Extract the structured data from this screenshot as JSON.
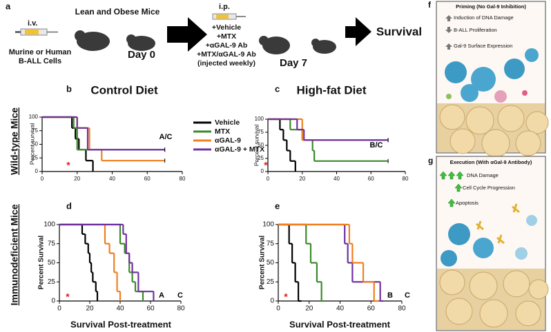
{
  "schematic": {
    "label": "a",
    "iv": "i.v.",
    "cells": [
      "Murine or Human",
      "B-ALL Cells"
    ],
    "mice_title": "Lean and Obese Mice",
    "day0": "Day 0",
    "ip": "i.p.",
    "treatments": [
      "+Vehicle",
      "+MTX",
      "+αGAL-9 Ab",
      "+MTX/αGAL-9 Ab",
      "(injected weekly)"
    ],
    "day7": "Day 7",
    "outcome": "Survival"
  },
  "row_labels": [
    "Wild-type Mice",
    "Immunodeficient Mice"
  ],
  "panels": [
    {
      "label": "f",
      "title": "Priming (No Gal-9 Inhibition)",
      "items": [
        "Induction of DNA Damage",
        "B-ALL Proliferation",
        "Gal-9 Surface Expression"
      ]
    },
    {
      "label": "g",
      "title": "Execution (With αGal-9 Antibody)",
      "items": [
        "DNA Damage",
        "Cell Cycle Progression",
        "Apoptosis"
      ]
    }
  ],
  "chart_data": [
    {
      "type": "step",
      "label": "b",
      "title": "Control Diet",
      "ylabel": "Percent survival",
      "xlim": [
        0,
        80
      ],
      "xticks": [
        0,
        20,
        40,
        60,
        80
      ],
      "ylim": [
        0,
        100
      ],
      "yticks": [
        0,
        25,
        50,
        75,
        100
      ],
      "series": [
        {
          "name": "Vehicle",
          "color": "#000000",
          "x": [
            0,
            17,
            19,
            21,
            25,
            29
          ],
          "values": [
            100,
            80,
            60,
            40,
            20,
            0
          ]
        },
        {
          "name": "MTX",
          "color": "#3a8a2a",
          "x": [
            0,
            18,
            20,
            70
          ],
          "values": [
            100,
            80,
            40,
            40
          ]
        },
        {
          "name": "αGAL-9",
          "color": "#f07f1f",
          "x": [
            0,
            20,
            27,
            34,
            70
          ],
          "values": [
            100,
            80,
            40,
            20,
            20
          ]
        },
        {
          "name": "αGAL-9 + MTX",
          "color": "#7030a0",
          "x": [
            0,
            20,
            26,
            70
          ],
          "values": [
            100,
            80,
            40,
            40
          ]
        }
      ],
      "annotations": [
        {
          "text": "A/C",
          "color": "#000000"
        },
        {
          "text": "*",
          "color": "#e02020"
        }
      ]
    },
    {
      "type": "step",
      "label": "c",
      "title": "High-fat Diet",
      "ylabel": "Percent survival",
      "xlim": [
        0,
        80
      ],
      "xticks": [
        0,
        20,
        40,
        60,
        80
      ],
      "ylim": [
        0,
        100
      ],
      "yticks": [
        0,
        25,
        50,
        75,
        100
      ],
      "series": [
        {
          "color": "#000000",
          "x": [
            0,
            7,
            9,
            11,
            13,
            16
          ],
          "values": [
            100,
            80,
            60,
            40,
            20,
            0
          ]
        },
        {
          "color": "#3a8a2a",
          "x": [
            0,
            13,
            20,
            26,
            27,
            70
          ],
          "values": [
            100,
            80,
            60,
            40,
            20,
            20
          ]
        },
        {
          "color": "#f07f1f",
          "x": [
            0,
            20,
            70
          ],
          "values": [
            100,
            60,
            60
          ]
        },
        {
          "color": "#7030a0",
          "x": [
            0,
            17,
            21,
            70
          ],
          "values": [
            100,
            80,
            60,
            60
          ]
        }
      ],
      "annotations": [
        {
          "text": "B/C",
          "color": "#000000"
        },
        {
          "text": "*",
          "color": "#e02020"
        }
      ]
    },
    {
      "type": "step",
      "label": "d",
      "ylabel": "Percent Survival",
      "xlabel": "Survival Post-treatment",
      "xlim": [
        0,
        80
      ],
      "xticks": [
        0,
        20,
        40,
        60,
        80
      ],
      "ylim": [
        0,
        100
      ],
      "yticks": [
        0,
        25,
        50,
        75,
        100
      ],
      "series": [
        {
          "color": "#000000",
          "x": [
            0,
            15,
            17,
            19,
            20,
            21,
            22,
            24,
            25
          ],
          "values": [
            100,
            87.5,
            75,
            62.5,
            50,
            37.5,
            25,
            12.5,
            0
          ]
        },
        {
          "color": "#f07f1f",
          "x": [
            0,
            30,
            33,
            36,
            38,
            39,
            40
          ],
          "values": [
            100,
            75,
            62.5,
            37.5,
            12.5,
            12.5,
            0
          ]
        },
        {
          "color": "#3a8a2a",
          "x": [
            0,
            40,
            43,
            46,
            48,
            50,
            53,
            55
          ],
          "values": [
            100,
            75,
            62.5,
            37.5,
            25,
            12.5,
            12.5,
            0
          ]
        },
        {
          "color": "#7030a0",
          "x": [
            0,
            42,
            44,
            46,
            48,
            52,
            58,
            62
          ],
          "values": [
            100,
            87.5,
            62.5,
            50,
            37.5,
            12.5,
            12.5,
            0
          ]
        }
      ],
      "annotations": [
        {
          "text": "A",
          "color": "#000000"
        },
        {
          "text": "C",
          "color": "#000000"
        },
        {
          "text": "*",
          "color": "#e02020"
        }
      ]
    },
    {
      "type": "step",
      "label": "e",
      "ylabel": "Percent Survival",
      "xlabel": "Survival Post-treatment",
      "xlim": [
        0,
        80
      ],
      "xticks": [
        0,
        20,
        40,
        60,
        80
      ],
      "ylim": [
        0,
        100
      ],
      "yticks": [
        0,
        25,
        50,
        75,
        100
      ],
      "series": [
        {
          "color": "#000000",
          "x": [
            0,
            7,
            9,
            11,
            13,
            15
          ],
          "values": [
            100,
            75,
            50,
            25,
            0,
            0
          ]
        },
        {
          "color": "#3a8a2a",
          "x": [
            0,
            18,
            21,
            25,
            28,
            30
          ],
          "values": [
            100,
            75,
            50,
            25,
            0,
            0
          ]
        },
        {
          "color": "#7030a0",
          "x": [
            0,
            43,
            45,
            48,
            66,
            68
          ],
          "values": [
            100,
            75,
            50,
            25,
            0,
            0
          ]
        },
        {
          "color": "#f07f1f",
          "x": [
            0,
            46,
            48,
            55,
            62,
            65
          ],
          "values": [
            100,
            75,
            50,
            25,
            0,
            0
          ]
        }
      ],
      "annotations": [
        {
          "text": "B",
          "color": "#000000"
        },
        {
          "text": "C",
          "color": "#000000"
        },
        {
          "text": "*",
          "color": "#e02020"
        }
      ]
    }
  ]
}
